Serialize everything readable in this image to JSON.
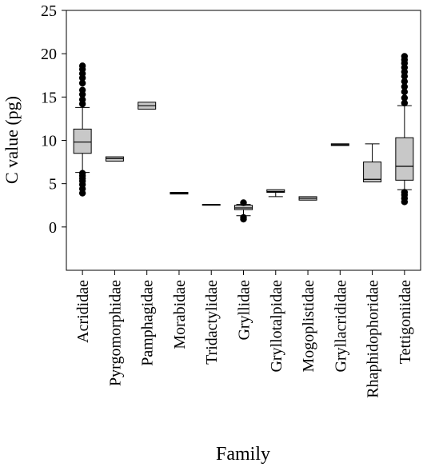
{
  "chart_data": {
    "type": "box",
    "title": "",
    "xlabel": "Family",
    "ylabel": "C value (pg)",
    "ylim": [
      -5,
      25
    ],
    "yticks": [
      0,
      5,
      10,
      15,
      20,
      25
    ],
    "grid": false,
    "box_color": "#c8c8c8",
    "outlier_color": "#000000",
    "categories": [
      "Acrididae",
      "Pyrgomorphidae",
      "Pamphagidae",
      "Morabidae",
      "Tridactylidae",
      "Gryllidae",
      "Gryllotalpidae",
      "Mogoplistidae",
      "Gryllacrididae",
      "Rhaphidophoridae",
      "Tettigoniidae"
    ],
    "boxes": [
      {
        "whisker_low": 6.3,
        "q1": 8.5,
        "median": 9.8,
        "q3": 11.3,
        "whisker_high": 13.8,
        "outliers": [
          3.9,
          4.4,
          4.9,
          5.3,
          5.6,
          5.9,
          6.2,
          14.2,
          14.7,
          15.3,
          15.8,
          16.6,
          17.2,
          17.7,
          18.2,
          18.6
        ]
      },
      {
        "whisker_low": 7.6,
        "q1": 7.6,
        "median": 7.9,
        "q3": 8.1,
        "whisker_high": 8.1,
        "outliers": []
      },
      {
        "whisker_low": 13.6,
        "q1": 13.6,
        "median": 14.0,
        "q3": 14.4,
        "whisker_high": 14.4,
        "outliers": []
      },
      {
        "whisker_low": 3.8,
        "q1": 3.8,
        "median": 3.9,
        "q3": 4.0,
        "whisker_high": 4.0,
        "outliers": []
      },
      {
        "whisker_low": 2.6,
        "q1": 2.6,
        "median": 2.6,
        "q3": 2.6,
        "whisker_high": 2.6,
        "outliers": []
      },
      {
        "whisker_low": 1.3,
        "q1": 2.0,
        "median": 2.2,
        "q3": 2.5,
        "whisker_high": 2.6,
        "outliers": [
          0.9,
          1.1,
          2.8
        ]
      },
      {
        "whisker_low": 3.5,
        "q1": 4.0,
        "median": 4.1,
        "q3": 4.3,
        "whisker_high": 4.3,
        "outliers": []
      },
      {
        "whisker_low": 3.1,
        "q1": 3.1,
        "median": 3.3,
        "q3": 3.5,
        "whisker_high": 3.5,
        "outliers": []
      },
      {
        "whisker_low": 9.4,
        "q1": 9.4,
        "median": 9.5,
        "q3": 9.6,
        "whisker_high": 9.6,
        "outliers": []
      },
      {
        "whisker_low": 5.2,
        "q1": 5.2,
        "median": 5.5,
        "q3": 7.5,
        "whisker_high": 9.6,
        "outliers": []
      },
      {
        "whisker_low": 4.3,
        "q1": 5.4,
        "median": 7.0,
        "q3": 10.3,
        "whisker_high": 14.0,
        "outliers": [
          2.9,
          3.3,
          3.7,
          4.0,
          14.3,
          14.9,
          15.6,
          16.2,
          16.8,
          17.4,
          17.9,
          18.4,
          18.9,
          19.3,
          19.7
        ]
      }
    ]
  }
}
